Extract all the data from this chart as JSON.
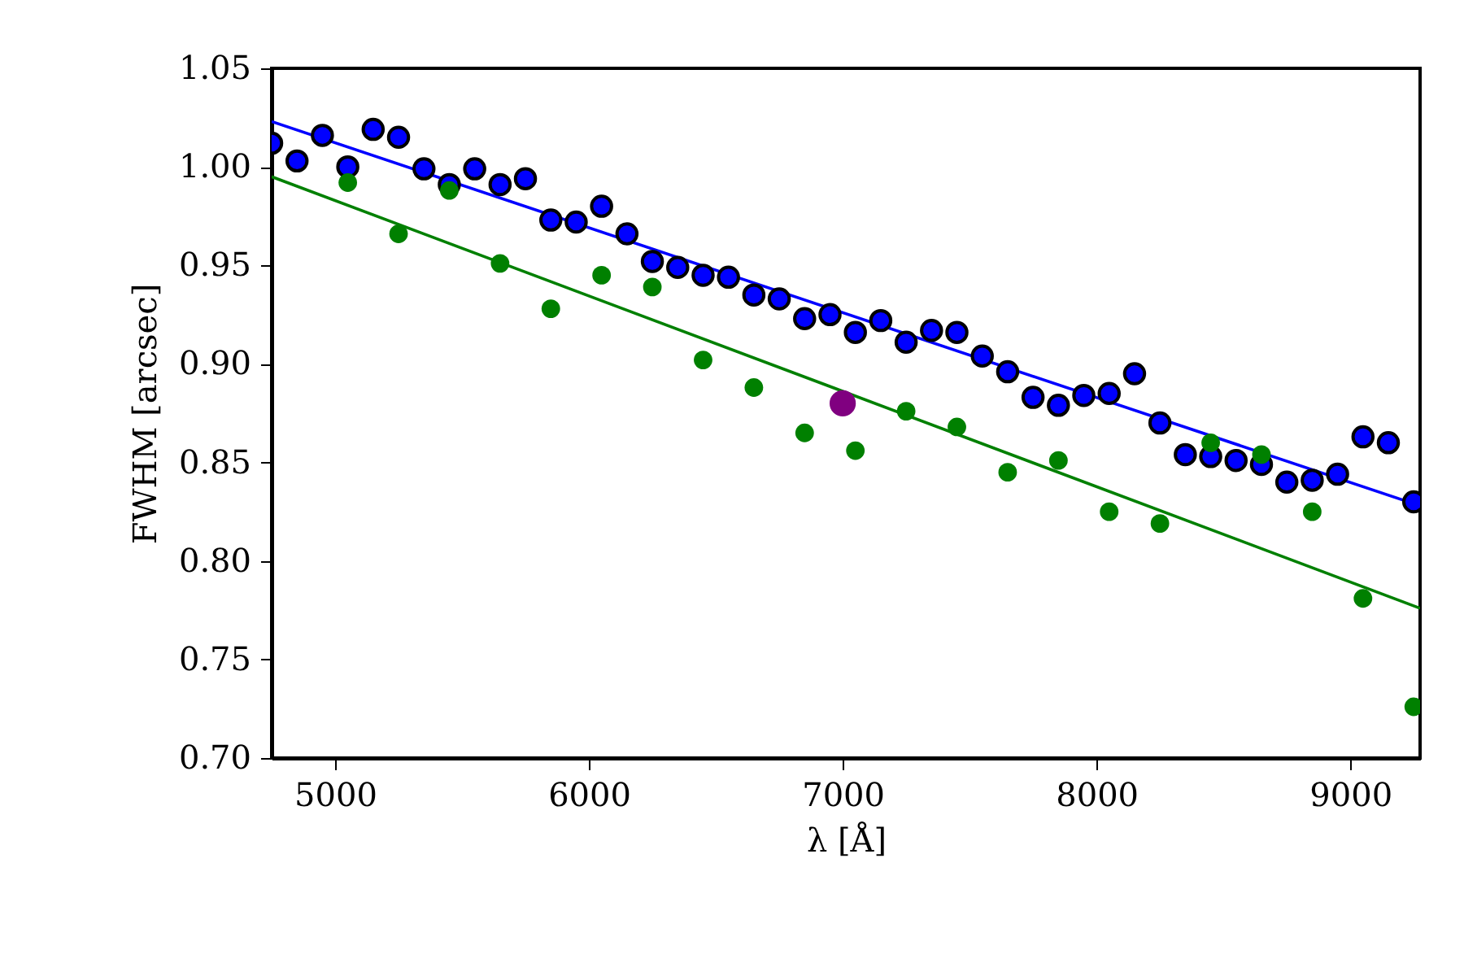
{
  "chart_data": {
    "type": "scatter",
    "xlabel": "λ [Å]",
    "ylabel": "FWHM [arcsec]",
    "xlim": [
      4750,
      9275
    ],
    "xticks": [
      5000,
      6000,
      7000,
      8000,
      9000
    ],
    "ylim": [
      0.7,
      1.05
    ],
    "yticks": [
      {
        "value": 0.7,
        "label": "0.70"
      },
      {
        "value": 0.75,
        "label": "0.75"
      },
      {
        "value": 0.8,
        "label": "0.80"
      },
      {
        "value": 0.85,
        "label": "0.85"
      },
      {
        "value": 0.9,
        "label": "0.90"
      },
      {
        "value": 0.95,
        "label": "0.95"
      },
      {
        "value": 1.0,
        "label": "1.00"
      },
      {
        "value": 1.05,
        "label": "1.05"
      }
    ],
    "grid": false,
    "series": [
      {
        "type": "line",
        "color": "#0000ff",
        "x": [
          4750,
          9275
        ],
        "values": [
          1.023,
          0.828
        ]
      },
      {
        "type": "line",
        "color": "#008000",
        "x": [
          4750,
          9275
        ],
        "values": [
          0.995,
          0.776
        ]
      },
      {
        "marker": "circle",
        "color": "#0000ff",
        "x": [
          4750,
          4850,
          4950,
          5050,
          5150,
          5250,
          5350,
          5450,
          5550,
          5650,
          5750,
          5850,
          5950,
          6050,
          6150,
          6250,
          6350,
          6450,
          6550,
          6650,
          6750,
          6850,
          6950,
          7050,
          7150,
          7250,
          7350,
          7450,
          7550,
          7650,
          7750,
          7850,
          7950,
          8050,
          8150,
          8250,
          8350,
          8450,
          8550,
          8650,
          8750,
          8850,
          8950,
          9050,
          9150,
          9250
        ],
        "values": [
          1.012,
          1.003,
          1.016,
          1.0,
          1.019,
          1.015,
          0.999,
          0.991,
          0.999,
          0.991,
          0.994,
          0.973,
          0.972,
          0.98,
          0.966,
          0.952,
          0.949,
          0.945,
          0.944,
          0.935,
          0.933,
          0.923,
          0.925,
          0.916,
          0.922,
          0.911,
          0.917,
          0.916,
          0.904,
          0.896,
          0.883,
          0.879,
          0.884,
          0.885,
          0.895,
          0.87,
          0.854,
          0.853,
          0.851,
          0.849,
          0.84,
          0.841,
          0.844,
          0.863,
          0.86,
          0.83
        ]
      },
      {
        "marker": "circle",
        "color": "#008000",
        "x": [
          5050,
          5250,
          5450,
          5650,
          5850,
          6050,
          6250,
          6450,
          6650,
          6850,
          7050,
          7250,
          7450,
          7650,
          7850,
          8050,
          8250,
          8450,
          8650,
          8850,
          9050,
          9250
        ],
        "values": [
          0.992,
          0.966,
          0.988,
          0.951,
          0.928,
          0.945,
          0.939,
          0.902,
          0.888,
          0.865,
          0.856,
          0.876,
          0.868,
          0.845,
          0.851,
          0.825,
          0.819,
          0.86,
          0.854,
          0.825,
          0.781,
          0.726
        ]
      },
      {
        "marker": "circle",
        "color": "#800080",
        "x": [
          7000
        ],
        "values": [
          0.88
        ]
      }
    ]
  }
}
